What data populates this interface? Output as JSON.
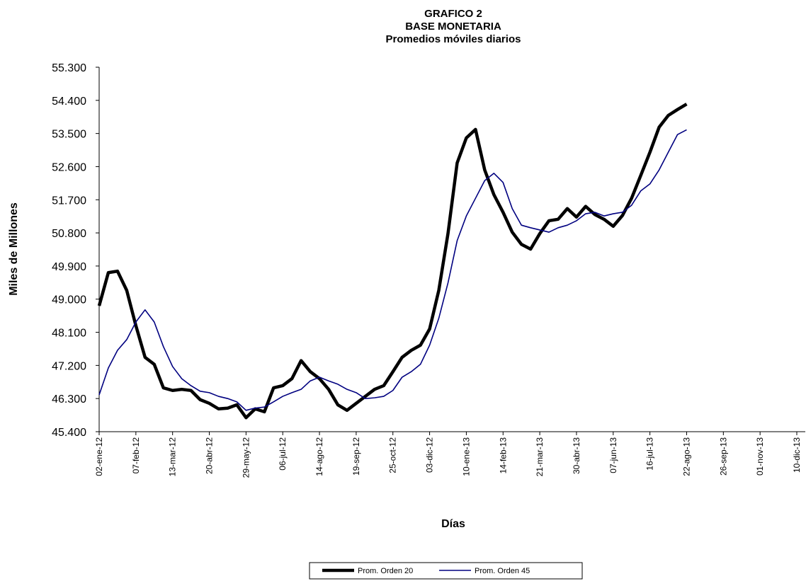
{
  "chart_data": {
    "type": "line",
    "title_lines": [
      "GRAFICO 2",
      "BASE MONETARIA",
      "Promedios móviles diarios"
    ],
    "x_label": "Días",
    "y_label": "Miles de Millones",
    "categories": [
      "02-ene-12",
      null,
      null,
      null,
      "07-feb-12",
      null,
      null,
      null,
      "13-mar-12",
      null,
      null,
      null,
      "20-abr-12",
      null,
      null,
      null,
      "29-may-12",
      null,
      null,
      null,
      "06-jul-12",
      null,
      null,
      null,
      "14-ago-12",
      null,
      null,
      null,
      "19-sep-12",
      null,
      null,
      null,
      "25-oct-12",
      null,
      null,
      null,
      "03-dic-12",
      null,
      null,
      null,
      "10-ene-13",
      null,
      null,
      null,
      "14-feb-13",
      null,
      null,
      null,
      "21-mar-13",
      null,
      null,
      null,
      "30-abr-13",
      null,
      null,
      null,
      "07-jun-13",
      null,
      null,
      null,
      "16-jul-13",
      null,
      null,
      null,
      "22-ago-13",
      null,
      null,
      null,
      "26-sep-13",
      null,
      null,
      null,
      "01-nov-13",
      null,
      null,
      null,
      "10-dic-13"
    ],
    "series": [
      {
        "name": "Prom. Orden 20",
        "color": "#000000",
        "values": [
          48.82,
          49.72,
          49.76,
          49.24,
          48.28,
          47.42,
          47.23,
          46.59,
          46.52,
          46.55,
          46.52,
          46.27,
          46.17,
          46.02,
          46.04,
          46.13,
          45.78,
          46.02,
          45.94,
          46.59,
          46.65,
          46.84,
          47.33,
          47.03,
          46.84,
          46.55,
          46.13,
          45.98,
          46.17,
          46.36,
          46.55,
          46.65,
          47.03,
          47.42,
          47.61,
          47.75,
          48.19,
          49.24,
          50.78,
          52.7,
          53.38,
          53.61,
          52.51,
          51.84,
          51.36,
          50.82,
          50.49,
          50.36,
          50.78,
          51.13,
          51.17,
          51.46,
          51.23,
          51.52,
          51.3,
          51.17,
          50.98,
          51.27,
          51.74,
          52.36,
          52.99,
          53.67,
          53.99,
          54.15,
          54.3,
          null,
          null,
          null,
          null,
          null,
          null,
          null,
          null,
          null,
          null,
          null,
          null
        ]
      },
      {
        "name": "Prom. Orden 45",
        "color": "#000080",
        "values": [
          46.4,
          47.13,
          47.61,
          47.9,
          48.38,
          48.71,
          48.38,
          47.71,
          47.17,
          46.84,
          46.65,
          46.5,
          46.46,
          46.36,
          46.3,
          46.21,
          45.98,
          46.04,
          46.07,
          46.21,
          46.36,
          46.46,
          46.55,
          46.78,
          46.88,
          46.78,
          46.69,
          46.55,
          46.46,
          46.3,
          46.32,
          46.36,
          46.52,
          46.88,
          47.03,
          47.23,
          47.75,
          48.48,
          49.44,
          50.59,
          51.26,
          51.74,
          52.22,
          52.42,
          52.17,
          51.46,
          51.01,
          50.94,
          50.88,
          50.82,
          50.94,
          51.01,
          51.13,
          51.32,
          51.36,
          51.26,
          51.32,
          51.36,
          51.55,
          51.94,
          52.13,
          52.51,
          52.99,
          53.47,
          53.6,
          null,
          null,
          null,
          null,
          null,
          null,
          null,
          null,
          null,
          null,
          null,
          null
        ]
      }
    ],
    "ylim": [
      45.4,
      55.3
    ],
    "yticks": [
      {
        "value": 45.4,
        "label": "45.400"
      },
      {
        "value": 46.3,
        "label": "46.300"
      },
      {
        "value": 47.2,
        "label": "47.200"
      },
      {
        "value": 48.1,
        "label": "48.100"
      },
      {
        "value": 49.0,
        "label": "49.000"
      },
      {
        "value": 49.9,
        "label": "49.900"
      },
      {
        "value": 50.8,
        "label": "50.800"
      },
      {
        "value": 51.7,
        "label": "51.700"
      },
      {
        "value": 52.6,
        "label": "52.600"
      },
      {
        "value": 53.5,
        "label": "53.500"
      },
      {
        "value": 54.4,
        "label": "54.400"
      },
      {
        "value": 55.3,
        "label": "55.300"
      }
    ],
    "grid": false,
    "legend": "bottom"
  }
}
